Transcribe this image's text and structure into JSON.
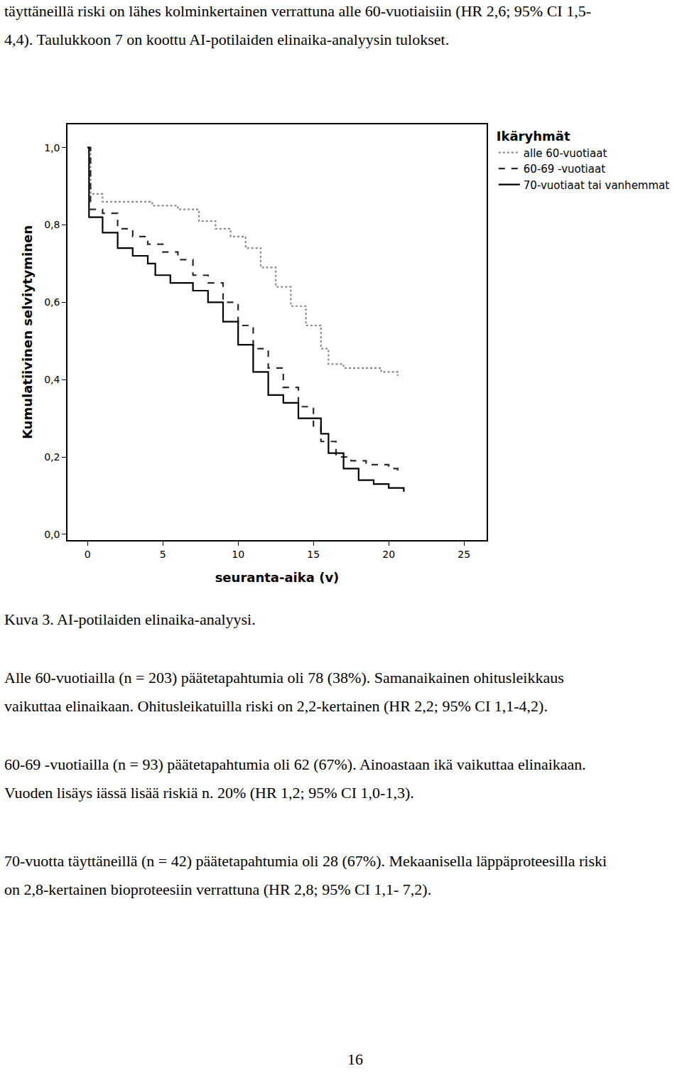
{
  "document": {
    "top_lines": [
      "täyttäneillä riski on lähes kolminkertainen verrattuna alle 60-vuotiaisiin (HR 2,6; 95% CI 1,5-",
      "4,4). Taulukkoon 7 on koottu AI-potilaiden elinaika-analyysin tulokset."
    ],
    "caption": "Kuva 3. AI-potilaiden elinaika-analyysi.",
    "paragraphs": [
      [
        "Alle 60-vuotiailla (n = 203) päätetapahtumia oli 78 (38%). Samanaikainen ohitusleikkaus",
        "vaikuttaa elinaikaan. Ohitusleikatuilla riski on 2,2-kertainen (HR 2,2; 95% CI 1,1-4,2)."
      ],
      [
        "60-69 -vuotiailla (n = 93) päätetapahtumia oli 62 (67%). Ainoastaan ikä vaikuttaa elinaikaan.",
        "Vuoden lisäys iässä lisää riskiä n. 20% (HR 1,2; 95% CI 1,0-1,3)."
      ],
      [
        "70-vuotta täyttäneillä (n = 42) päätetapahtumia oli 28 (67%). Mekaanisella läppäproteesilla riski",
        "on 2,8-kertainen bioproteesiin verrattuna (HR 2,8; 95% CI 1,1- 7,2)."
      ]
    ],
    "page_number": "16"
  },
  "chart_data": {
    "type": "line",
    "x_label": "seuranta-aika (v)",
    "y_label": "Kumulatiivinen selviytyminen",
    "legend_title": "Ikäryhmät",
    "legend": "top right",
    "grid": false,
    "xlim": [
      -1.33,
      26.5
    ],
    "ylim": [
      -0.015,
      1.06
    ],
    "xticks": [
      0,
      5,
      10,
      15,
      20,
      25
    ],
    "yticks": [
      {
        "value": 0,
        "label": "0,0"
      },
      {
        "value": 0.2,
        "label": "0,2"
      },
      {
        "value": 0.4,
        "label": "0,4"
      },
      {
        "value": 0.6,
        "label": "0,6"
      },
      {
        "value": 0.8,
        "label": "0,8"
      },
      {
        "value": 1.0,
        "label": "1,0"
      }
    ],
    "series": [
      {
        "name": "alle 60-vuotiaat",
        "color": "#8a8a8a",
        "line_style": "dot",
        "x": [
          0,
          0.2,
          1,
          4.3,
          6,
          7.4,
          8.5,
          9.5,
          10.5,
          11.5,
          12.5,
          13.5,
          14.5,
          15.5,
          16,
          17,
          19.5,
          20.6
        ],
        "values": [
          1.0,
          0.88,
          0.86,
          0.85,
          0.84,
          0.81,
          0.79,
          0.77,
          0.74,
          0.69,
          0.64,
          0.59,
          0.54,
          0.48,
          0.44,
          0.43,
          0.42,
          0.41
        ]
      },
      {
        "name": "60-69 -vuotiaat",
        "color": "#2a2a2a",
        "line_style": "dash",
        "x": [
          0,
          0.2,
          1,
          2,
          3,
          4,
          5,
          6,
          7,
          8,
          9,
          10,
          11,
          12,
          13,
          14,
          15,
          15.5,
          16.5,
          17.5,
          18.5,
          20,
          20.6
        ],
        "values": [
          1.0,
          0.84,
          0.83,
          0.79,
          0.77,
          0.75,
          0.73,
          0.71,
          0.67,
          0.65,
          0.6,
          0.54,
          0.48,
          0.43,
          0.38,
          0.33,
          0.28,
          0.24,
          0.2,
          0.19,
          0.18,
          0.17,
          0.16
        ]
      },
      {
        "name": "70-vuotiaat tai vanhemmat",
        "color": "#000000",
        "line_style": "solid",
        "x": [
          0,
          0.1,
          1,
          2,
          3,
          4,
          4.5,
          5.5,
          7,
          8,
          9,
          10,
          11,
          12,
          13,
          14,
          15.5,
          16,
          17,
          18,
          19,
          20,
          21
        ],
        "values": [
          1.0,
          0.82,
          0.78,
          0.74,
          0.72,
          0.7,
          0.67,
          0.65,
          0.63,
          0.6,
          0.55,
          0.49,
          0.42,
          0.36,
          0.34,
          0.3,
          0.26,
          0.21,
          0.17,
          0.14,
          0.13,
          0.12,
          0.11
        ]
      }
    ]
  }
}
